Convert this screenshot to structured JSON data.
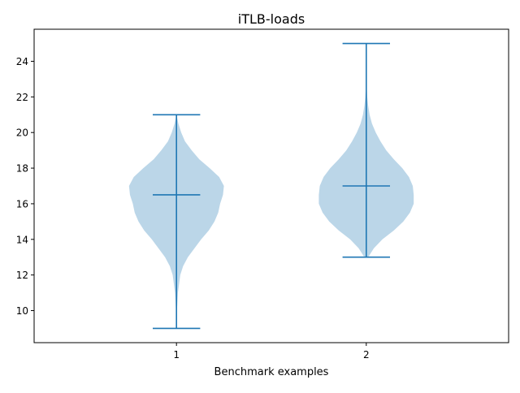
{
  "chart_data": {
    "type": "violin",
    "title": "iTLB-loads",
    "xlabel": "Benchmark examples",
    "ylabel": "",
    "categories": [
      "1",
      "2"
    ],
    "xlim": [
      0.25,
      2.75
    ],
    "ylim": [
      8.2,
      25.8
    ],
    "yticks": [
      10,
      12,
      14,
      16,
      18,
      20,
      22,
      24
    ],
    "grid": false,
    "series": [
      {
        "category": "1",
        "min": 9,
        "max": 21,
        "median": 16.5,
        "density_profile": [
          [
            9.0,
            0.0
          ],
          [
            10.0,
            0.005
          ],
          [
            11.0,
            0.015
          ],
          [
            12.0,
            0.04
          ],
          [
            12.5,
            0.07
          ],
          [
            13.0,
            0.12
          ],
          [
            13.5,
            0.19
          ],
          [
            14.0,
            0.26
          ],
          [
            14.5,
            0.34
          ],
          [
            15.0,
            0.4
          ],
          [
            15.5,
            0.44
          ],
          [
            16.0,
            0.46
          ],
          [
            16.5,
            0.49
          ],
          [
            17.0,
            0.5
          ],
          [
            17.5,
            0.45
          ],
          [
            18.0,
            0.35
          ],
          [
            18.5,
            0.24
          ],
          [
            19.0,
            0.16
          ],
          [
            19.5,
            0.09
          ],
          [
            20.0,
            0.05
          ],
          [
            20.5,
            0.02
          ],
          [
            21.0,
            0.0
          ]
        ]
      },
      {
        "category": "2",
        "min": 13,
        "max": 25,
        "median": 17,
        "density_profile": [
          [
            13.0,
            0.02
          ],
          [
            13.5,
            0.08
          ],
          [
            14.0,
            0.17
          ],
          [
            14.5,
            0.29
          ],
          [
            15.0,
            0.39
          ],
          [
            15.5,
            0.46
          ],
          [
            16.0,
            0.5
          ],
          [
            16.5,
            0.5
          ],
          [
            17.0,
            0.49
          ],
          [
            17.5,
            0.45
          ],
          [
            18.0,
            0.38
          ],
          [
            18.5,
            0.29
          ],
          [
            19.0,
            0.21
          ],
          [
            19.5,
            0.15
          ],
          [
            20.0,
            0.1
          ],
          [
            20.5,
            0.06
          ],
          [
            21.0,
            0.035
          ],
          [
            21.5,
            0.02
          ],
          [
            22.0,
            0.01
          ],
          [
            22.5,
            0.005
          ],
          [
            23.0,
            0.002
          ],
          [
            24.0,
            0.0
          ],
          [
            25.0,
            0.0
          ]
        ]
      }
    ],
    "colors": {
      "body_fill": "#1f77b4",
      "body_opacity": 0.3,
      "line": "#1f77b4",
      "axis": "#000000"
    }
  }
}
